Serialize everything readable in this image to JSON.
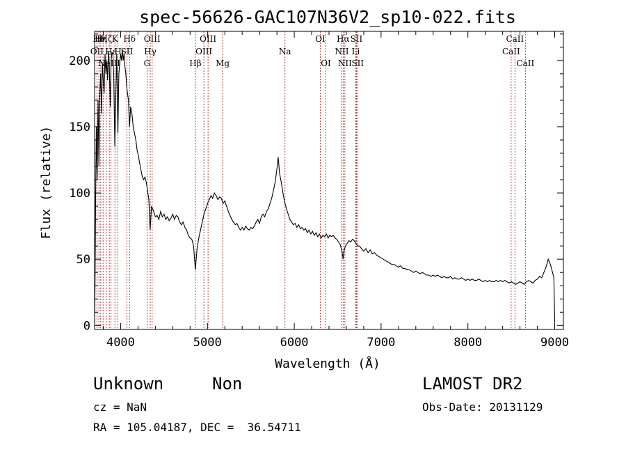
{
  "chart_data": {
    "type": "line",
    "title": "spec-56626-GAC107N36V2_sp10-022.fits",
    "xlabel": "Wavelength (Å)",
    "ylabel": "Flux (relative)",
    "xlim": [
      3700,
      9100
    ],
    "ylim": [
      -3,
      222
    ],
    "xticks": [
      4000,
      5000,
      6000,
      7000,
      8000,
      9000
    ],
    "yticks": [
      0,
      50,
      100,
      150,
      200
    ],
    "grid": false,
    "series": [
      {
        "points": [
          [
            3700,
            2
          ],
          [
            3705,
            30
          ],
          [
            3712,
            95
          ],
          [
            3720,
            150
          ],
          [
            3730,
            110
          ],
          [
            3740,
            170
          ],
          [
            3750,
            120
          ],
          [
            3760,
            175
          ],
          [
            3770,
            190
          ],
          [
            3780,
            160
          ],
          [
            3790,
            198
          ],
          [
            3800,
            185
          ],
          [
            3810,
            175
          ],
          [
            3820,
            205
          ],
          [
            3830,
            190
          ],
          [
            3840,
            200
          ],
          [
            3850,
            185
          ],
          [
            3860,
            207
          ],
          [
            3870,
            195
          ],
          [
            3880,
            165
          ],
          [
            3890,
            200
          ],
          [
            3900,
            206
          ],
          [
            3910,
            205
          ],
          [
            3920,
            190
          ],
          [
            3933,
            135
          ],
          [
            3945,
            175
          ],
          [
            3955,
            205
          ],
          [
            3968,
            145
          ],
          [
            3980,
            190
          ],
          [
            3990,
            198
          ],
          [
            4000,
            205
          ],
          [
            4010,
            200
          ],
          [
            4020,
            208
          ],
          [
            4030,
            200
          ],
          [
            4040,
            205
          ],
          [
            4050,
            195
          ],
          [
            4060,
            190
          ],
          [
            4070,
            180
          ],
          [
            4080,
            175
          ],
          [
            4090,
            170
          ],
          [
            4102,
            150
          ],
          [
            4115,
            165
          ],
          [
            4130,
            160
          ],
          [
            4145,
            150
          ],
          [
            4160,
            145
          ],
          [
            4175,
            140
          ],
          [
            4190,
            132
          ],
          [
            4205,
            128
          ],
          [
            4220,
            122
          ],
          [
            4235,
            117
          ],
          [
            4250,
            112
          ],
          [
            4265,
            110
          ],
          [
            4280,
            112
          ],
          [
            4295,
            108
          ],
          [
            4310,
            102
          ],
          [
            4325,
            95
          ],
          [
            4340,
            72
          ],
          [
            4355,
            90
          ],
          [
            4370,
            88
          ],
          [
            4385,
            85
          ],
          [
            4400,
            82
          ],
          [
            4420,
            83
          ],
          [
            4440,
            80
          ],
          [
            4460,
            86
          ],
          [
            4480,
            82
          ],
          [
            4500,
            84
          ],
          [
            4520,
            80
          ],
          [
            4540,
            82
          ],
          [
            4560,
            79
          ],
          [
            4580,
            81
          ],
          [
            4600,
            84
          ],
          [
            4620,
            80
          ],
          [
            4640,
            83
          ],
          [
            4660,
            82
          ],
          [
            4680,
            78
          ],
          [
            4700,
            76
          ],
          [
            4720,
            78
          ],
          [
            4740,
            74
          ],
          [
            4760,
            72
          ],
          [
            4780,
            68
          ],
          [
            4800,
            66
          ],
          [
            4820,
            65
          ],
          [
            4840,
            60
          ],
          [
            4861,
            42
          ],
          [
            4880,
            58
          ],
          [
            4900,
            66
          ],
          [
            4920,
            72
          ],
          [
            4940,
            78
          ],
          [
            4960,
            84
          ],
          [
            4980,
            88
          ],
          [
            5000,
            92
          ],
          [
            5020,
            95
          ],
          [
            5040,
            98
          ],
          [
            5060,
            96
          ],
          [
            5080,
            100
          ],
          [
            5100,
            98
          ],
          [
            5120,
            95
          ],
          [
            5140,
            97
          ],
          [
            5160,
            96
          ],
          [
            5180,
            92
          ],
          [
            5200,
            94
          ],
          [
            5220,
            90
          ],
          [
            5240,
            86
          ],
          [
            5260,
            83
          ],
          [
            5280,
            80
          ],
          [
            5300,
            78
          ],
          [
            5320,
            76
          ],
          [
            5340,
            77
          ],
          [
            5360,
            74
          ],
          [
            5380,
            72
          ],
          [
            5400,
            74
          ],
          [
            5420,
            72
          ],
          [
            5440,
            75
          ],
          [
            5460,
            73
          ],
          [
            5480,
            72
          ],
          [
            5500,
            74
          ],
          [
            5520,
            73
          ],
          [
            5540,
            75
          ],
          [
            5560,
            78
          ],
          [
            5580,
            80
          ],
          [
            5600,
            77
          ],
          [
            5620,
            82
          ],
          [
            5640,
            84
          ],
          [
            5660,
            82
          ],
          [
            5680,
            86
          ],
          [
            5700,
            88
          ],
          [
            5720,
            92
          ],
          [
            5740,
            96
          ],
          [
            5760,
            102
          ],
          [
            5780,
            108
          ],
          [
            5800,
            118
          ],
          [
            5815,
            127
          ],
          [
            5830,
            115
          ],
          [
            5850,
            108
          ],
          [
            5870,
            100
          ],
          [
            5890,
            93
          ],
          [
            5910,
            88
          ],
          [
            5930,
            84
          ],
          [
            5950,
            80
          ],
          [
            5970,
            78
          ],
          [
            5990,
            76
          ],
          [
            6010,
            77
          ],
          [
            6030,
            74
          ],
          [
            6050,
            76
          ],
          [
            6070,
            73
          ],
          [
            6090,
            74
          ],
          [
            6110,
            72
          ],
          [
            6130,
            73
          ],
          [
            6150,
            70
          ],
          [
            6170,
            72
          ],
          [
            6190,
            69
          ],
          [
            6210,
            71
          ],
          [
            6230,
            68
          ],
          [
            6250,
            70
          ],
          [
            6270,
            67
          ],
          [
            6290,
            69
          ],
          [
            6310,
            66
          ],
          [
            6330,
            68
          ],
          [
            6350,
            67
          ],
          [
            6370,
            69
          ],
          [
            6390,
            66
          ],
          [
            6410,
            68
          ],
          [
            6430,
            67
          ],
          [
            6450,
            68
          ],
          [
            6470,
            66
          ],
          [
            6490,
            65
          ],
          [
            6510,
            63
          ],
          [
            6530,
            61
          ],
          [
            6550,
            56
          ],
          [
            6563,
            50
          ],
          [
            6575,
            57
          ],
          [
            6590,
            60
          ],
          [
            6610,
            62
          ],
          [
            6630,
            64
          ],
          [
            6650,
            63
          ],
          [
            6670,
            65
          ],
          [
            6690,
            64
          ],
          [
            6710,
            62
          ],
          [
            6730,
            60
          ],
          [
            6750,
            60
          ],
          [
            6775,
            58
          ],
          [
            6800,
            56
          ],
          [
            6825,
            58
          ],
          [
            6850,
            55
          ],
          [
            6875,
            57
          ],
          [
            6900,
            54
          ],
          [
            6925,
            55
          ],
          [
            6950,
            53
          ],
          [
            6975,
            52
          ],
          [
            7000,
            51
          ],
          [
            7025,
            50
          ],
          [
            7050,
            49
          ],
          [
            7075,
            48
          ],
          [
            7100,
            47
          ],
          [
            7125,
            46
          ],
          [
            7150,
            46
          ],
          [
            7175,
            45
          ],
          [
            7200,
            44
          ],
          [
            7225,
            45
          ],
          [
            7250,
            43
          ],
          [
            7275,
            43
          ],
          [
            7300,
            42
          ],
          [
            7325,
            42
          ],
          [
            7350,
            41
          ],
          [
            7375,
            40
          ],
          [
            7400,
            41
          ],
          [
            7425,
            40
          ],
          [
            7450,
            39
          ],
          [
            7475,
            40
          ],
          [
            7500,
            39
          ],
          [
            7525,
            38
          ],
          [
            7550,
            38
          ],
          [
            7575,
            37
          ],
          [
            7600,
            38
          ],
          [
            7625,
            37
          ],
          [
            7650,
            38
          ],
          [
            7675,
            37
          ],
          [
            7700,
            36
          ],
          [
            7725,
            37
          ],
          [
            7750,
            36
          ],
          [
            7775,
            36
          ],
          [
            7800,
            37
          ],
          [
            7825,
            35
          ],
          [
            7850,
            36
          ],
          [
            7875,
            35
          ],
          [
            7900,
            35
          ],
          [
            7925,
            36
          ],
          [
            7950,
            35
          ],
          [
            7975,
            34
          ],
          [
            8000,
            35
          ],
          [
            8025,
            34
          ],
          [
            8050,
            35
          ],
          [
            8075,
            34
          ],
          [
            8100,
            34
          ],
          [
            8125,
            35
          ],
          [
            8150,
            34
          ],
          [
            8175,
            33
          ],
          [
            8200,
            34
          ],
          [
            8225,
            33
          ],
          [
            8250,
            34
          ],
          [
            8275,
            33
          ],
          [
            8300,
            33
          ],
          [
            8325,
            34
          ],
          [
            8350,
            33
          ],
          [
            8375,
            34
          ],
          [
            8400,
            33
          ],
          [
            8425,
            34
          ],
          [
            8450,
            33
          ],
          [
            8475,
            32
          ],
          [
            8500,
            33
          ],
          [
            8525,
            32
          ],
          [
            8550,
            31
          ],
          [
            8575,
            32
          ],
          [
            8600,
            33
          ],
          [
            8625,
            32
          ],
          [
            8650,
            31
          ],
          [
            8675,
            33
          ],
          [
            8700,
            34
          ],
          [
            8725,
            33
          ],
          [
            8750,
            32
          ],
          [
            8775,
            34
          ],
          [
            8800,
            35
          ],
          [
            8825,
            37
          ],
          [
            8850,
            36
          ],
          [
            8875,
            40
          ],
          [
            8900,
            44
          ],
          [
            8925,
            50
          ],
          [
            8950,
            46
          ],
          [
            8975,
            40
          ],
          [
            8990,
            36
          ],
          [
            9000,
            2
          ]
        ]
      }
    ],
    "line_markers": [
      {
        "x": 3727,
        "label": "OII",
        "row": 1
      },
      {
        "x": 3750,
        "label": "Hθ",
        "row": 0
      },
      {
        "x": 3771,
        "label": "Hη",
        "row": 0
      },
      {
        "x": 3798,
        "label": "",
        "row": -1
      },
      {
        "x": 3835,
        "label": "Hζ",
        "row": 0
      },
      {
        "x": 3869,
        "label": "NeIII",
        "row": 2
      },
      {
        "x": 3889,
        "label": "Hε",
        "row": 1
      },
      {
        "x": 3934,
        "label": "K",
        "row": 0
      },
      {
        "x": 3969,
        "label": "H",
        "row": 1
      },
      {
        "x": 4072,
        "label": "SII",
        "row": 1
      },
      {
        "x": 4102,
        "label": "Hδ",
        "row": 0
      },
      {
        "x": 4304,
        "label": "G",
        "row": 2
      },
      {
        "x": 4341,
        "label": "Hγ",
        "row": 1
      },
      {
        "x": 4363,
        "label": "OIII",
        "row": 0
      },
      {
        "x": 4861,
        "label": "Hβ",
        "row": 2
      },
      {
        "x": 4959,
        "label": "OIII",
        "row": 1
      },
      {
        "x": 5007,
        "label": "OIII",
        "row": 0
      },
      {
        "x": 5175,
        "label": "Mg",
        "row": 2
      },
      {
        "x": 5893,
        "label": "Na",
        "row": 1
      },
      {
        "x": 6300,
        "label": "OI",
        "row": 0
      },
      {
        "x": 6364,
        "label": "OI",
        "row": 2
      },
      {
        "x": 6548,
        "label": "NII",
        "row": 1
      },
      {
        "x": 6563,
        "label": "Hα",
        "row": 0
      },
      {
        "x": 6583,
        "label": "NII",
        "row": 2
      },
      {
        "x": 6708,
        "label": "Li",
        "row": 1
      },
      {
        "x": 6716,
        "label": "SII",
        "row": 0
      },
      {
        "x": 6731,
        "label": "SII",
        "row": 2
      },
      {
        "x": 8498,
        "label": "CaII",
        "row": 1
      },
      {
        "x": 8542,
        "label": "CaII",
        "row": 0
      },
      {
        "x": 8662,
        "label": "CaII",
        "row": 2
      }
    ]
  },
  "info": {
    "class": "Unknown",
    "subclass": "Non",
    "survey": "LAMOST DR2",
    "cz": "cz = NaN",
    "obs_date": "Obs-Date: 20131129",
    "coords": "RA = 105.04187, DEC =  36.54711"
  }
}
